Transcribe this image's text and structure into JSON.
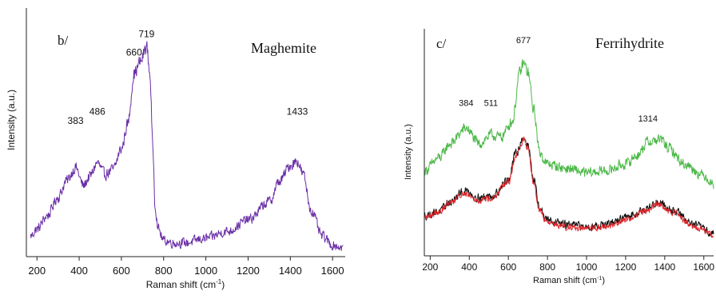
{
  "chart_data": [
    {
      "type": "line",
      "panel_label": "b/",
      "sample_name": "Maghemite",
      "xlabel_main": "Raman shift (cm",
      "xlabel_sup": "-1",
      "xlabel_end": ")",
      "ylabel": "Intensity (a.u.)",
      "xlim": [
        150,
        1660
      ],
      "ylim": [
        0,
        1
      ],
      "x_ticks": [
        200,
        400,
        600,
        800,
        1000,
        1200,
        1400,
        1600
      ],
      "y_ticks_labeled": false,
      "grid": false,
      "annotations": [
        {
          "text": "383",
          "x": 383,
          "y": 0.58
        },
        {
          "text": "486",
          "x": 486,
          "y": 0.62
        },
        {
          "text": "660",
          "x": 660,
          "y": 0.88
        },
        {
          "text": "719",
          "x": 719,
          "y": 0.96
        },
        {
          "text": "1433",
          "x": 1433,
          "y": 0.62
        }
      ],
      "series": [
        {
          "color": "#6a2fa5",
          "noise": 0.028,
          "x": [
            170,
            200,
            250,
            300,
            340,
            383,
            420,
            450,
            486,
            520,
            560,
            600,
            630,
            660,
            690,
            719,
            735,
            750,
            760,
            775,
            800,
            850,
            900,
            1000,
            1100,
            1200,
            1300,
            1350,
            1400,
            1433,
            1460,
            1500,
            1550,
            1600,
            1650
          ],
          "y": [
            0.09,
            0.12,
            0.18,
            0.26,
            0.33,
            0.39,
            0.31,
            0.35,
            0.41,
            0.36,
            0.38,
            0.47,
            0.58,
            0.8,
            0.85,
            0.92,
            0.8,
            0.45,
            0.22,
            0.12,
            0.07,
            0.06,
            0.06,
            0.08,
            0.11,
            0.16,
            0.24,
            0.33,
            0.4,
            0.42,
            0.36,
            0.2,
            0.09,
            0.05,
            0.04
          ]
        }
      ]
    },
    {
      "type": "line",
      "panel_label": "c/",
      "sample_name": "Ferrihydrite",
      "xlabel_main": "Raman shift (cm",
      "xlabel_sup": "-1",
      "xlabel_end": ")",
      "ylabel": "Intensity (a.u.)",
      "xlim": [
        170,
        1650
      ],
      "ylim": [
        0,
        1
      ],
      "x_ticks": [
        200,
        400,
        600,
        800,
        1000,
        1200,
        1400,
        1600
      ],
      "y_ticks_labeled": false,
      "grid": false,
      "annotations": [
        {
          "text": "384",
          "x": 384,
          "y": 0.67
        },
        {
          "text": "511",
          "x": 511,
          "y": 0.67
        },
        {
          "text": "677",
          "x": 677,
          "y": 0.95
        },
        {
          "text": "1314",
          "x": 1314,
          "y": 0.6
        }
      ],
      "series": [
        {
          "color": "#4cb848",
          "noise": 0.025,
          "x": [
            170,
            250,
            300,
            384,
            450,
            511,
            560,
            620,
            660,
            677,
            700,
            730,
            760,
            800,
            900,
            1000,
            1100,
            1200,
            1260,
            1314,
            1380,
            1420,
            1500,
            1600,
            1650
          ],
          "y": [
            0.38,
            0.44,
            0.5,
            0.57,
            0.5,
            0.54,
            0.53,
            0.6,
            0.82,
            0.86,
            0.82,
            0.65,
            0.46,
            0.41,
            0.39,
            0.37,
            0.38,
            0.41,
            0.45,
            0.51,
            0.52,
            0.48,
            0.41,
            0.36,
            0.32
          ]
        },
        {
          "color": "#111111",
          "noise": 0.022,
          "x": [
            170,
            250,
            300,
            380,
            450,
            520,
            600,
            640,
            677,
            700,
            730,
            760,
            800,
            900,
            1000,
            1100,
            1200,
            1300,
            1370,
            1450,
            1550,
            1650
          ],
          "y": [
            0.18,
            0.2,
            0.24,
            0.29,
            0.26,
            0.27,
            0.34,
            0.46,
            0.53,
            0.49,
            0.34,
            0.21,
            0.16,
            0.14,
            0.13,
            0.14,
            0.17,
            0.21,
            0.24,
            0.2,
            0.14,
            0.1
          ]
        },
        {
          "color": "#e0262b",
          "noise": 0.018,
          "x": [
            170,
            250,
            300,
            380,
            450,
            520,
            600,
            640,
            677,
            700,
            730,
            760,
            800,
            900,
            1000,
            1100,
            1200,
            1300,
            1370,
            1450,
            1550,
            1650
          ],
          "y": [
            0.17,
            0.2,
            0.24,
            0.28,
            0.25,
            0.26,
            0.33,
            0.45,
            0.52,
            0.48,
            0.33,
            0.2,
            0.15,
            0.13,
            0.12,
            0.13,
            0.16,
            0.2,
            0.23,
            0.19,
            0.13,
            0.09
          ]
        }
      ]
    }
  ]
}
